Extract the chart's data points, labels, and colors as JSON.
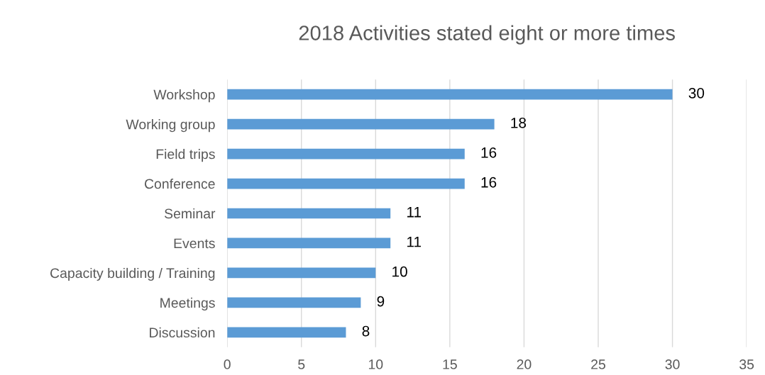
{
  "chart_data": {
    "type": "bar",
    "orientation": "horizontal",
    "title": "2018 Activities stated eight or more times",
    "categories": [
      "Workshop",
      "Working group",
      "Field trips",
      "Conference",
      "Seminar",
      "Events",
      "Capacity building / Training",
      "Meetings",
      "Discussion"
    ],
    "values": [
      30,
      18,
      16,
      16,
      11,
      11,
      10,
      9,
      8
    ],
    "color": "#5b9bd5",
    "xlim": [
      0,
      35
    ],
    "xticks": [
      0,
      5,
      10,
      15,
      20,
      25,
      30,
      35
    ],
    "grid": "x",
    "data_labels": true
  }
}
